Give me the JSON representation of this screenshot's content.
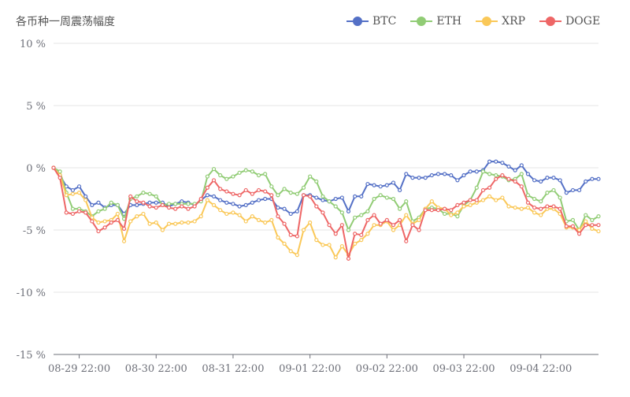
{
  "chart_data": {
    "type": "line",
    "title": "各币种一周震荡幅度",
    "y_ticks": [
      "10 %",
      "5 %",
      "0 %",
      "-5 %",
      "-10 %",
      "-15 %"
    ],
    "y_tick_values": [
      10,
      5,
      0,
      -5,
      -10,
      -15
    ],
    "ylim": [
      -15,
      10
    ],
    "x_tick_labels": [
      "08-29 22:00",
      "08-30 22:00",
      "08-31 22:00",
      "09-01 22:00",
      "09-02 22:00",
      "09-03 22:00",
      "09-04 22:00"
    ],
    "x_tick_index": [
      4,
      16,
      28,
      40,
      52,
      64,
      76
    ],
    "legend_position": "top-right",
    "grid": "horizontal",
    "series": [
      {
        "name": "BTC",
        "color": "#5470c6",
        "values": [
          0,
          -0.6,
          -1.5,
          -1.8,
          -1.5,
          -2.3,
          -3.0,
          -2.8,
          -3.2,
          -3.0,
          -3.0,
          -3.7,
          -3.0,
          -3.0,
          -2.9,
          -2.8,
          -2.8,
          -2.8,
          -3.1,
          -2.9,
          -2.7,
          -2.8,
          -3.0,
          -2.6,
          -2.2,
          -2.3,
          -2.6,
          -2.8,
          -2.9,
          -3.1,
          -3.0,
          -2.8,
          -2.6,
          -2.5,
          -2.5,
          -3.2,
          -3.3,
          -3.7,
          -3.5,
          -2.2,
          -2.2,
          -2.4,
          -2.6,
          -2.7,
          -2.5,
          -2.4,
          -3.5,
          -2.3,
          -2.3,
          -1.3,
          -1.4,
          -1.5,
          -1.4,
          -1.2,
          -1.8,
          -0.5,
          -0.8,
          -0.8,
          -0.8,
          -0.6,
          -0.5,
          -0.5,
          -0.6,
          -1.0,
          -0.6,
          -0.3,
          -0.3,
          -0.2,
          0.5,
          0.5,
          0.4,
          0.1,
          -0.2,
          0.2,
          -0.5,
          -1.0,
          -1.1,
          -0.8,
          -0.8,
          -1.0,
          -2.0,
          -1.8,
          -1.8,
          -1.1,
          -0.9,
          -0.9
        ]
      },
      {
        "name": "ETH",
        "color": "#91cc75",
        "values": [
          0,
          -0.3,
          -2.0,
          -3.3,
          -3.3,
          -3.5,
          -3.9,
          -3.5,
          -3.3,
          -2.8,
          -3.0,
          -4.1,
          -2.5,
          -2.3,
          -2.0,
          -2.1,
          -2.3,
          -3.0,
          -2.9,
          -2.9,
          -2.9,
          -2.9,
          -2.9,
          -2.7,
          -0.7,
          -0.1,
          -0.6,
          -0.9,
          -0.7,
          -0.4,
          -0.2,
          -0.3,
          -0.6,
          -0.5,
          -1.5,
          -2.2,
          -1.7,
          -2.0,
          -2.1,
          -1.6,
          -0.7,
          -1.1,
          -2.3,
          -2.7,
          -3.1,
          -3.6,
          -5.0,
          -4.0,
          -3.8,
          -3.5,
          -2.5,
          -2.2,
          -2.4,
          -2.5,
          -3.3,
          -2.7,
          -4.3,
          -4.0,
          -3.3,
          -3.2,
          -3.3,
          -3.7,
          -3.7,
          -3.9,
          -3.0,
          -2.6,
          -1.6,
          -0.3,
          -0.5,
          -0.6,
          -0.7,
          -1.0,
          -0.9,
          -0.5,
          -2.2,
          -2.5,
          -2.7,
          -2.0,
          -1.8,
          -2.4,
          -4.3,
          -4.2,
          -5.0,
          -3.8,
          -4.2,
          -3.9
        ]
      },
      {
        "name": "XRP",
        "color": "#fac858",
        "values": [
          0,
          -0.6,
          -2.2,
          -2.1,
          -2.0,
          -2.6,
          -4.0,
          -4.4,
          -4.3,
          -4.2,
          -3.7,
          -5.9,
          -4.3,
          -3.9,
          -3.7,
          -4.5,
          -4.4,
          -5.0,
          -4.5,
          -4.5,
          -4.4,
          -4.4,
          -4.3,
          -3.9,
          -2.6,
          -3.0,
          -3.4,
          -3.7,
          -3.6,
          -3.8,
          -4.3,
          -3.9,
          -4.2,
          -4.4,
          -4.2,
          -5.6,
          -6.1,
          -6.7,
          -7.0,
          -5.0,
          -4.4,
          -5.8,
          -6.2,
          -6.2,
          -7.2,
          -6.3,
          -7.0,
          -6.1,
          -5.8,
          -5.3,
          -4.6,
          -4.6,
          -4.3,
          -5.0,
          -4.6,
          -3.8,
          -4.5,
          -4.2,
          -3.3,
          -2.7,
          -3.2,
          -3.3,
          -3.8,
          -3.6,
          -3.1,
          -3.0,
          -2.8,
          -2.6,
          -2.3,
          -2.6,
          -2.4,
          -3.1,
          -3.2,
          -3.3,
          -3.2,
          -3.6,
          -3.8,
          -3.3,
          -3.3,
          -3.7,
          -4.8,
          -4.8,
          -5.0,
          -4.3,
          -4.9,
          -5.1
        ]
      },
      {
        "name": "DOGE",
        "color": "#ee6666",
        "values": [
          0,
          -0.8,
          -3.6,
          -3.7,
          -3.5,
          -3.6,
          -4.3,
          -5.1,
          -4.8,
          -4.4,
          -4.2,
          -4.9,
          -2.3,
          -2.7,
          -2.8,
          -3.1,
          -3.2,
          -3.0,
          -3.2,
          -3.3,
          -3.1,
          -3.3,
          -3.1,
          -2.5,
          -1.6,
          -1.0,
          -1.7,
          -1.9,
          -2.1,
          -2.2,
          -1.8,
          -2.1,
          -1.8,
          -1.9,
          -2.2,
          -3.9,
          -4.5,
          -5.4,
          -5.5,
          -2.2,
          -2.3,
          -3.1,
          -3.6,
          -4.6,
          -5.3,
          -4.6,
          -7.3,
          -5.3,
          -5.4,
          -4.2,
          -3.8,
          -4.5,
          -4.2,
          -4.6,
          -4.2,
          -5.9,
          -4.6,
          -5.0,
          -3.4,
          -3.4,
          -3.4,
          -3.3,
          -3.4,
          -3.0,
          -2.8,
          -2.6,
          -2.6,
          -1.8,
          -1.6,
          -0.9,
          -0.6,
          -0.9,
          -1.1,
          -1.5,
          -2.8,
          -3.2,
          -3.3,
          -3.1,
          -3.1,
          -3.3,
          -4.7,
          -4.7,
          -5.3,
          -4.6,
          -4.6,
          -4.6
        ]
      }
    ]
  }
}
